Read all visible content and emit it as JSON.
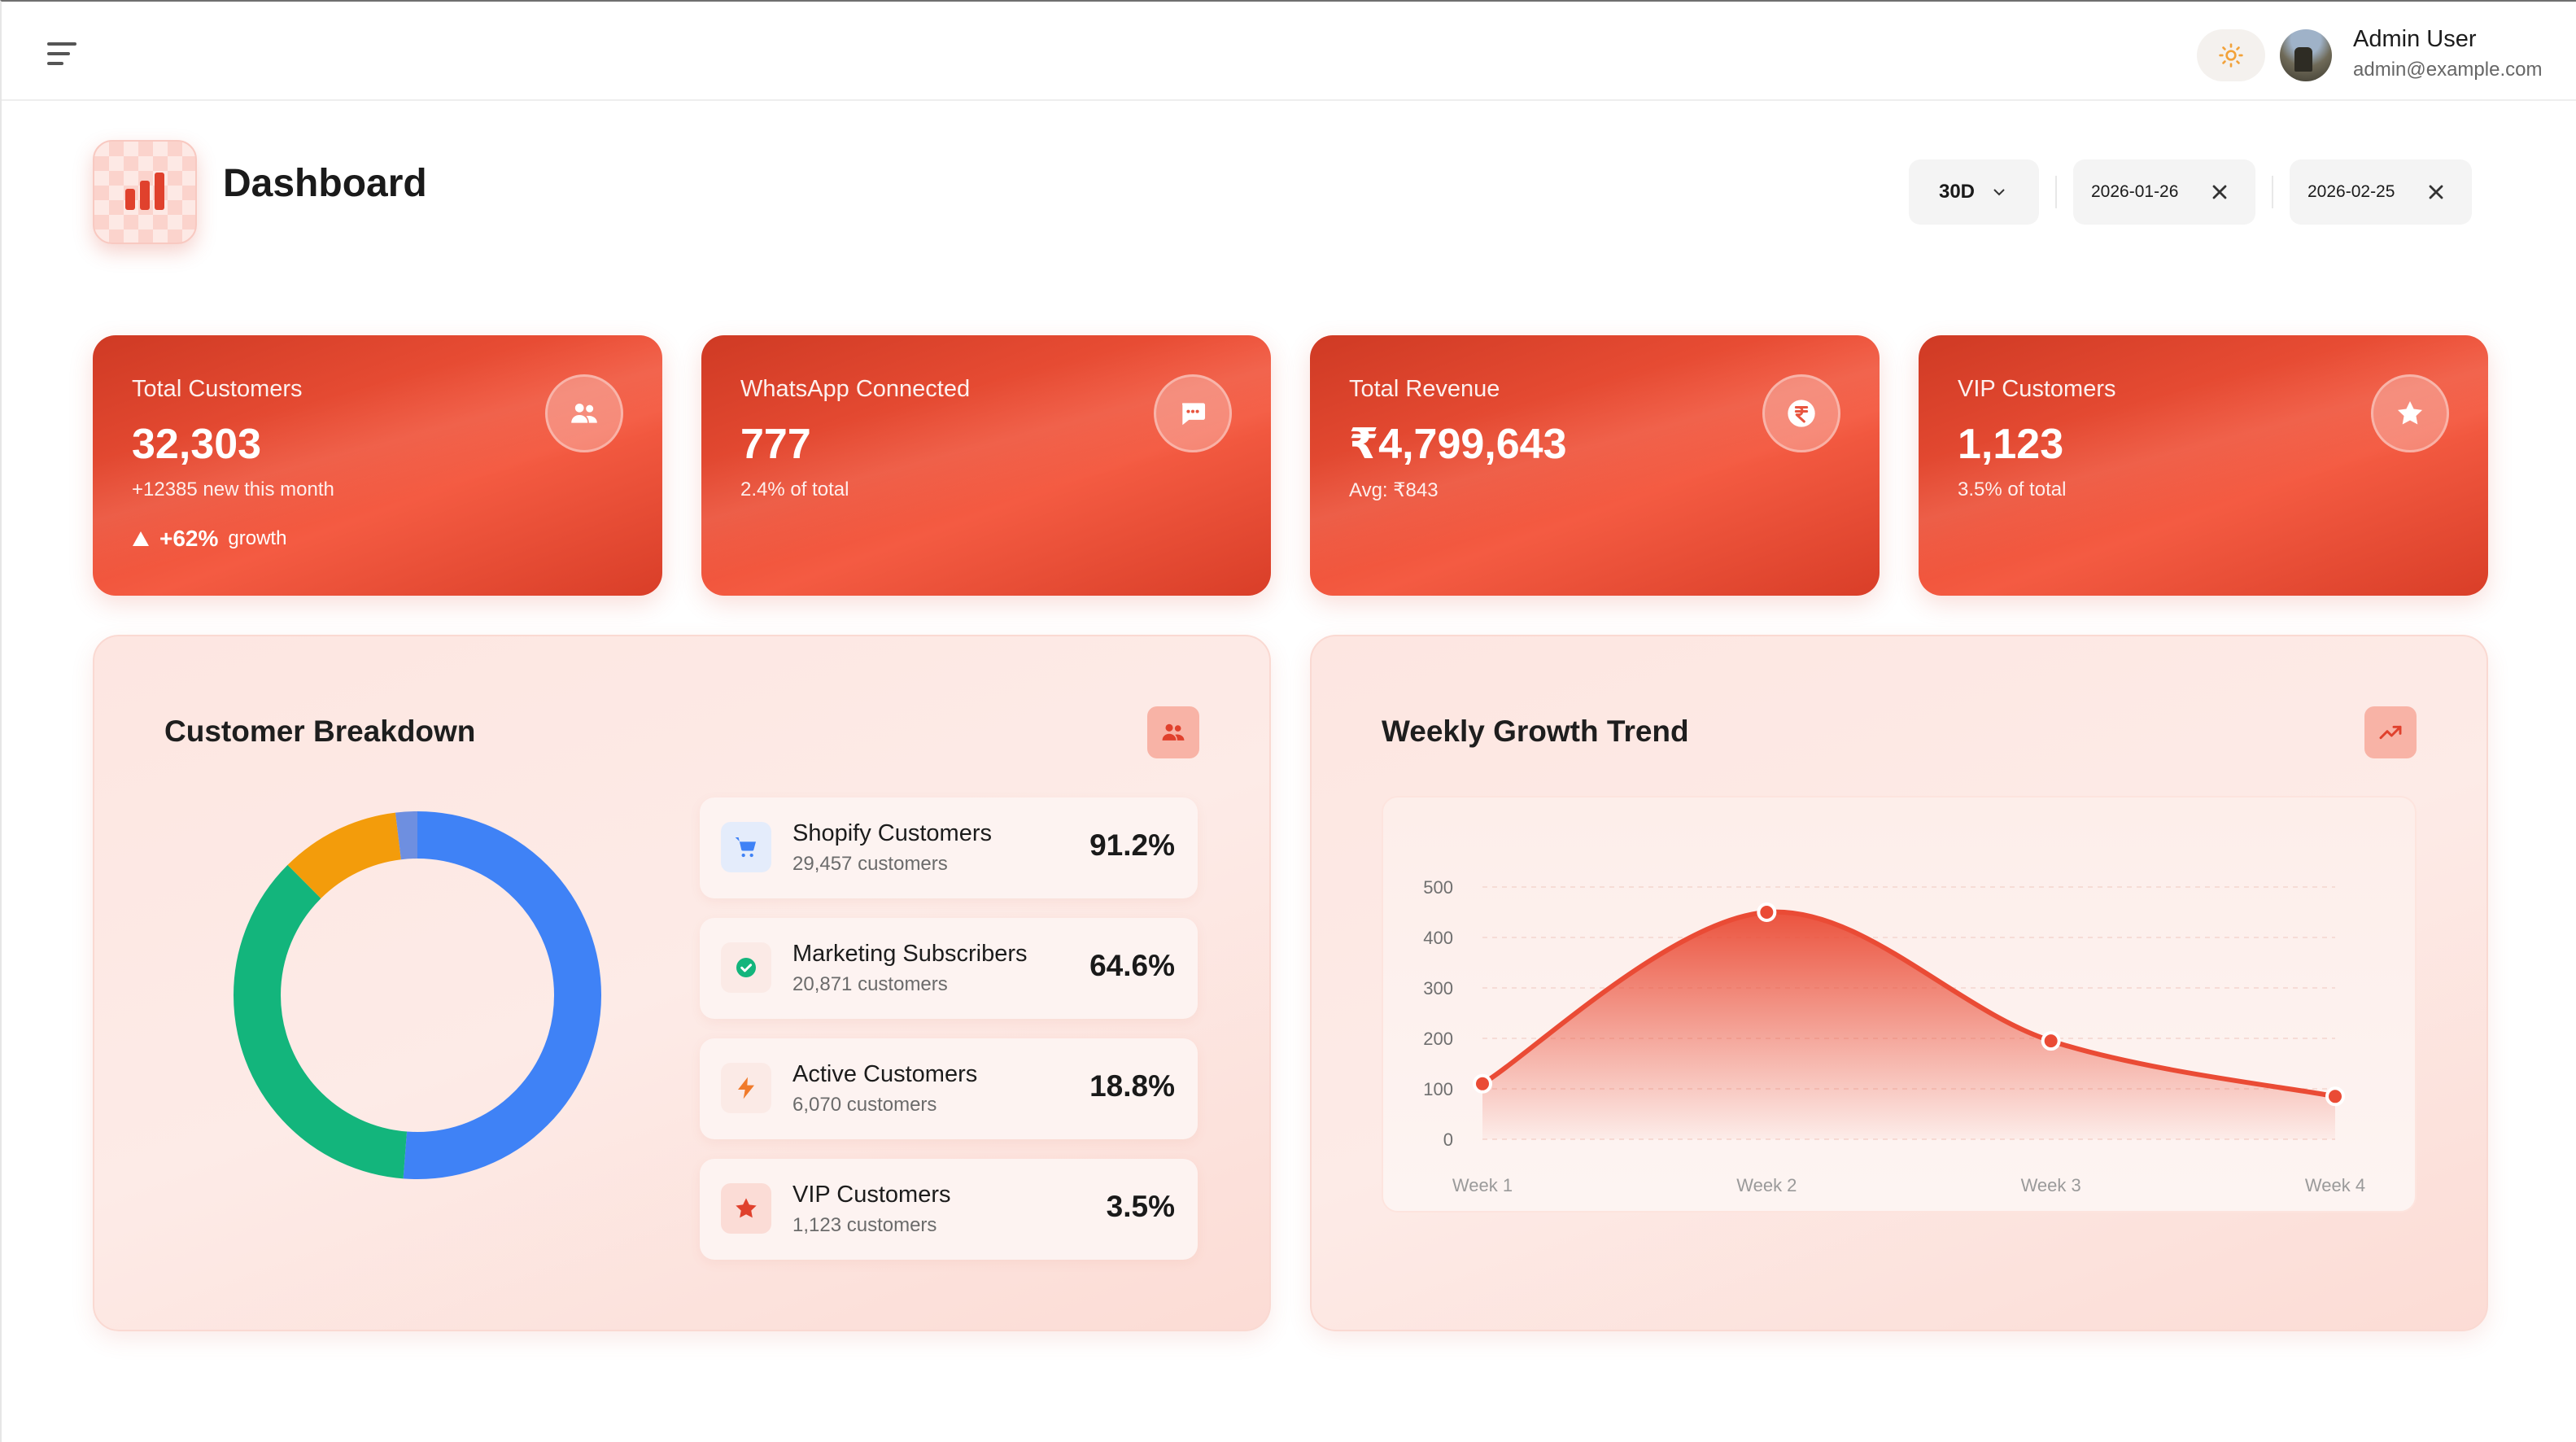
{
  "header": {
    "user_name": "Admin User",
    "user_email": "admin@example.com",
    "page_title": "Dashboard"
  },
  "filters": {
    "range": "30D",
    "start_date": "2026-01-26",
    "end_date": "2026-02-25"
  },
  "stats": [
    {
      "label": "Total Customers",
      "value": "32,303",
      "sub": "+12385 new this month",
      "growth_value": "+62%",
      "growth_label": "growth",
      "icon": "users-icon"
    },
    {
      "label": "WhatsApp Connected",
      "value": "777",
      "sub": "2.4% of total",
      "icon": "chat-icon"
    },
    {
      "label": "Total Revenue",
      "value": "₹4,799,643",
      "sub": "Avg: ₹843",
      "icon": "rupee-icon"
    },
    {
      "label": "VIP Customers",
      "value": "1,123",
      "sub": "3.5% of total",
      "icon": "star-icon"
    }
  ],
  "breakdown": {
    "title": "Customer Breakdown",
    "items": [
      {
        "title": "Shopify Customers",
        "sub": "29,457 customers",
        "pct": "91.2%",
        "icon": "cart-icon"
      },
      {
        "title": "Marketing Subscribers",
        "sub": "20,871 customers",
        "pct": "64.6%",
        "icon": "check-icon"
      },
      {
        "title": "Active Customers",
        "sub": "6,070 customers",
        "pct": "18.8%",
        "icon": "bolt-icon"
      },
      {
        "title": "VIP Customers",
        "sub": "1,123 customers",
        "pct": "3.5%",
        "icon": "star-icon"
      }
    ]
  },
  "growth": {
    "title": "Weekly Growth Trend"
  },
  "chart_data": [
    {
      "type": "pie",
      "title": "Customer Breakdown",
      "donut": true,
      "categories": [
        "Shopify Customers",
        "Marketing Subscribers",
        "Active Customers",
        "VIP Customers"
      ],
      "values": [
        29457,
        20871,
        6070,
        1123
      ],
      "colors": [
        "#3f82f6",
        "#13b57c",
        "#f39c0b",
        "#6e8fe0"
      ]
    },
    {
      "type": "area",
      "title": "Weekly Growth Trend",
      "categories": [
        "Week 1",
        "Week 2",
        "Week 3",
        "Week 4"
      ],
      "values": [
        110,
        450,
        195,
        85
      ],
      "yticks": [
        0,
        100,
        200,
        300,
        400,
        500
      ],
      "ylim": [
        0,
        500
      ],
      "color": "#ea4b35",
      "grid": true
    }
  ]
}
